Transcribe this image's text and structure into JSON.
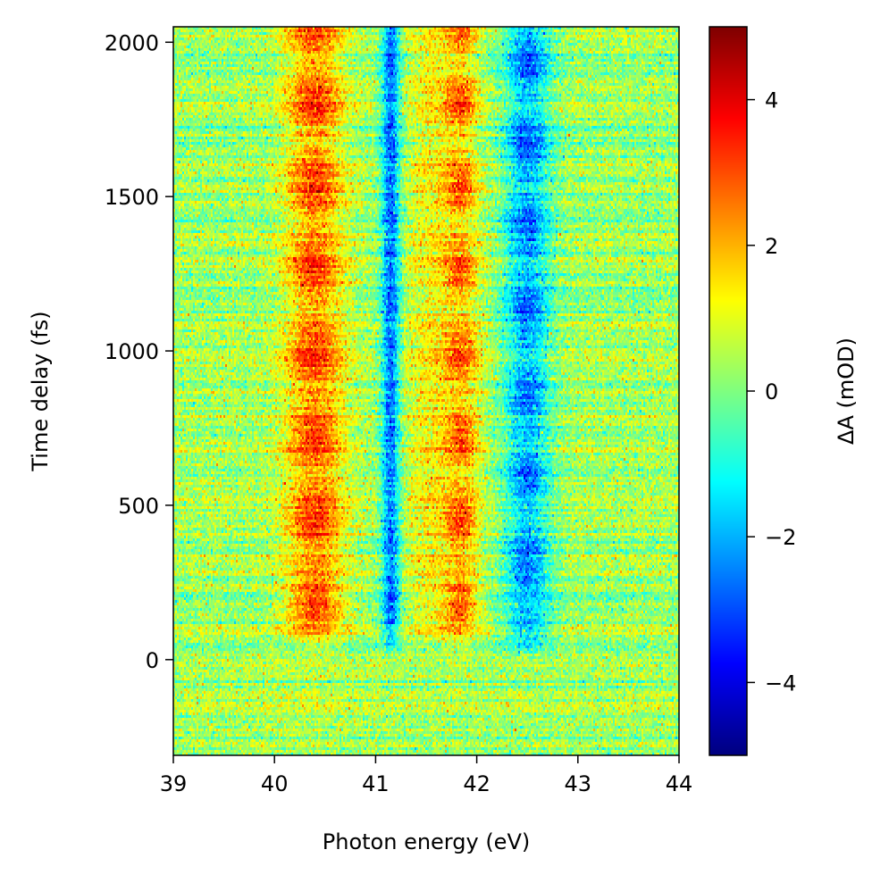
{
  "chart_data": {
    "type": "heatmap",
    "title": "",
    "xlabel": "Photon energy (eV)",
    "ylabel": "Time delay (fs)",
    "colorbar_label": "ΔA (mOD)",
    "colormap": "jet",
    "xlim": [
      39,
      44
    ],
    "ylim": [
      -310,
      2050
    ],
    "clim": [
      -5,
      5
    ],
    "x_ticks": [
      39,
      40,
      41,
      42,
      43,
      44
    ],
    "x_tick_labels": [
      "39",
      "40",
      "41",
      "42",
      "43",
      "44"
    ],
    "y_ticks": [
      0,
      500,
      1000,
      1500,
      2000
    ],
    "y_tick_labels": [
      "0",
      "500",
      "1000",
      "1500",
      "2000"
    ],
    "colorbar_ticks": [
      -4,
      -2,
      0,
      2,
      4
    ],
    "colorbar_tick_labels": [
      "−4",
      "−2",
      "0",
      "2",
      "4"
    ],
    "features": [
      {
        "name": "positive band",
        "energy_eV": 40.4,
        "sign": "positive",
        "peak_mOD": 3.0,
        "oscillating": true,
        "delay_maxima_fs": [
          180,
          470,
          750,
          1000,
          1270,
          1530,
          1800
        ]
      },
      {
        "name": "negative line",
        "energy_eV": 41.15,
        "sign": "negative",
        "peak_mOD": -3.0,
        "oscillating": false
      },
      {
        "name": "positive band",
        "energy_eV": 41.85,
        "sign": "positive",
        "peak_mOD": 2.5,
        "oscillating": true,
        "delay_maxima_fs": [
          470,
          740,
          1000,
          1220,
          1530,
          1850
        ]
      },
      {
        "name": "negative band",
        "energy_eV": 42.5,
        "sign": "negative",
        "peak_mOD": -3.2,
        "oscillating": true
      }
    ],
    "background_mOD": 0.3,
    "onset_fs": 0
  },
  "colors": {
    "background": "#ffffff",
    "axes": "#000000"
  }
}
